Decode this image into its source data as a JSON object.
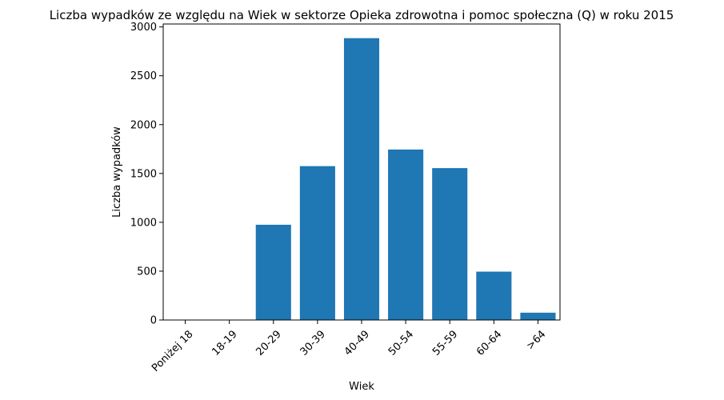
{
  "chart_data": {
    "type": "bar",
    "title": "Liczba wypadków ze względu na Wiek w sektorze Opieka zdrowotna i pomoc społeczna  (Q)   w roku 2015",
    "xlabel": "Wiek",
    "ylabel": "Liczba wypadków",
    "categories": [
      "Poniżej 18",
      "18-19",
      "20-29",
      "30-39",
      "40-49",
      "50-54",
      "55-59",
      "60-64",
      ">64"
    ],
    "values": [
      0,
      0,
      975,
      1575,
      2885,
      1745,
      1555,
      495,
      75
    ],
    "ylim": [
      0,
      3030
    ],
    "yticks": [
      0,
      500,
      1000,
      1500,
      2000,
      2500,
      3000
    ],
    "bar_color": "#1f77b4",
    "grid": false
  }
}
